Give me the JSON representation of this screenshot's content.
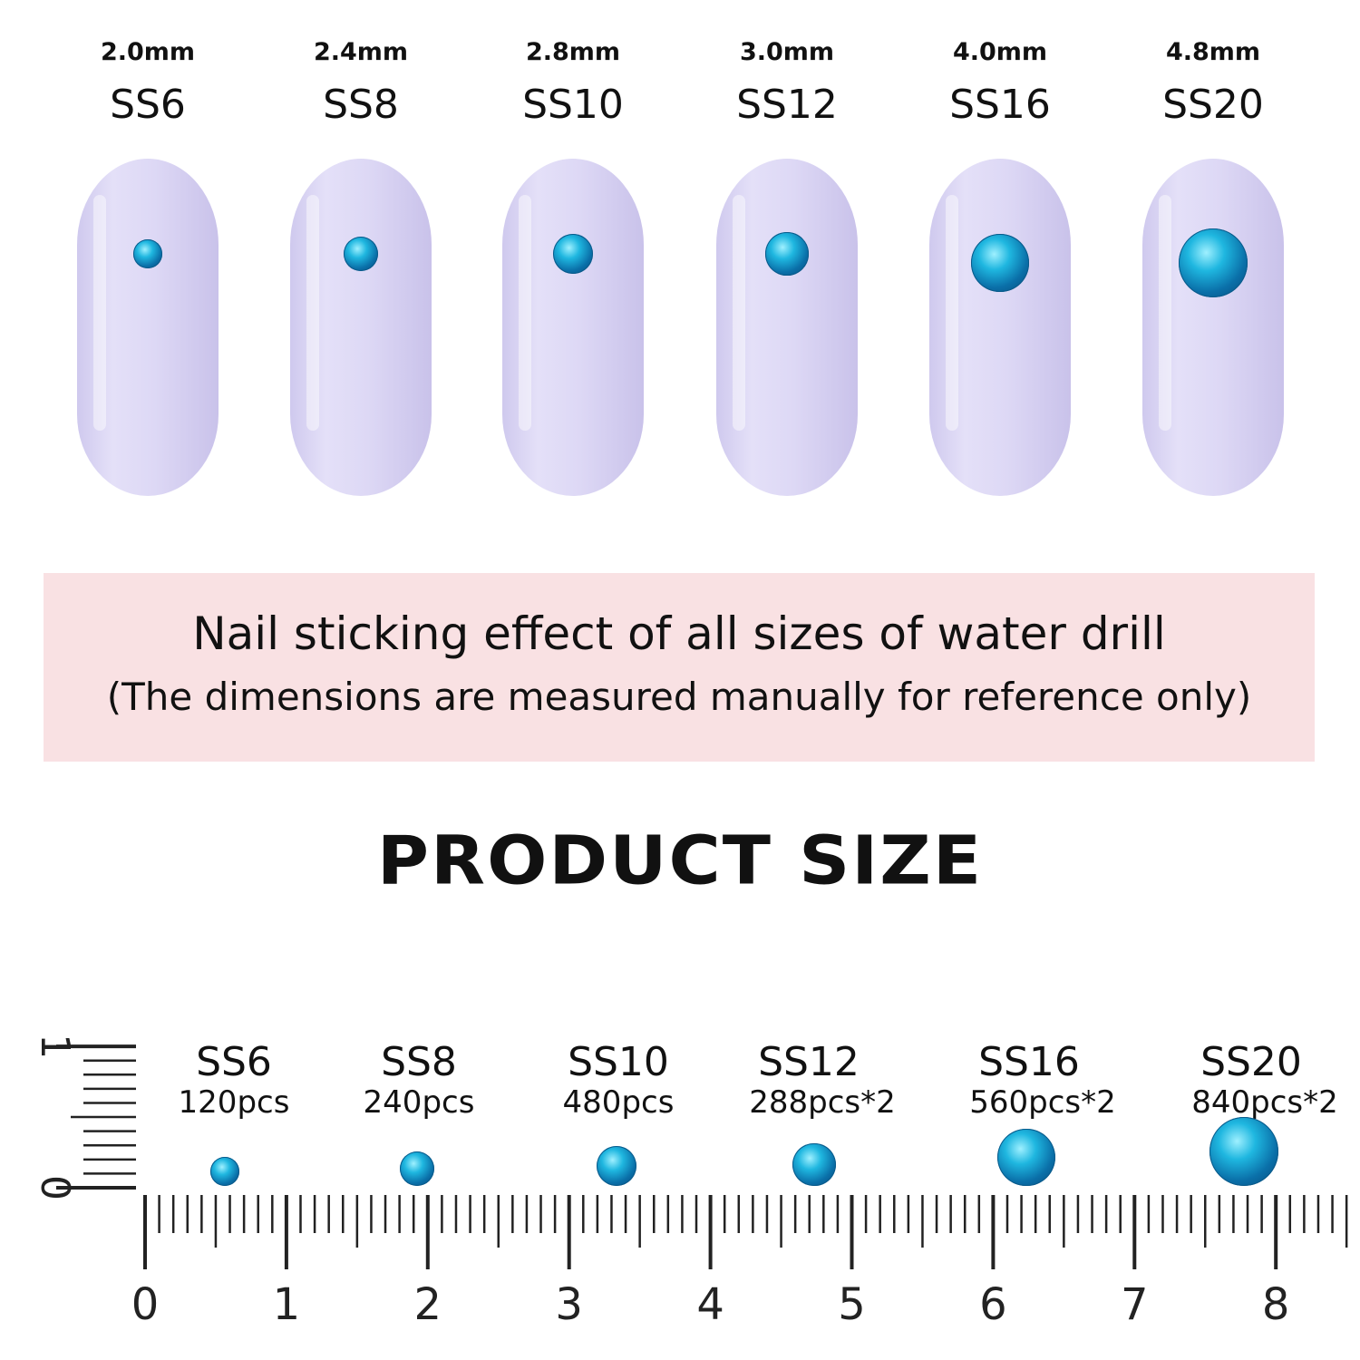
{
  "nails": [
    {
      "mm": "2.0mm",
      "ss": "SS6",
      "gem_mm": 2.0
    },
    {
      "mm": "2.4mm",
      "ss": "SS8",
      "gem_mm": 2.4
    },
    {
      "mm": "2.8mm",
      "ss": "SS10",
      "gem_mm": 2.8
    },
    {
      "mm": "3.0mm",
      "ss": "SS12",
      "gem_mm": 3.0
    },
    {
      "mm": "4.0mm",
      "ss": "SS16",
      "gem_mm": 4.0
    },
    {
      "mm": "4.8mm",
      "ss": "SS20",
      "gem_mm": 4.8
    }
  ],
  "banner": {
    "line1": "Nail sticking effect of all sizes of water drill",
    "line2": "(The dimensions are measured manually for reference only)"
  },
  "title": "PRODUCT  SIZE",
  "products": [
    {
      "ss": "SS6",
      "pcs": "120pcs"
    },
    {
      "ss": "SS8",
      "pcs": "240pcs"
    },
    {
      "ss": "SS10",
      "pcs": "480pcs"
    },
    {
      "ss": "SS12",
      "pcs": "288pcs*2"
    },
    {
      "ss": "SS16",
      "pcs": "560pcs*2"
    },
    {
      "ss": "SS20",
      "pcs": "840pcs*2"
    }
  ],
  "ruler": {
    "labels": [
      "0",
      "1",
      "2",
      "3",
      "4",
      "5",
      "6",
      "7",
      "8"
    ],
    "vertical_labels": [
      "0",
      "1"
    ]
  },
  "colors": {
    "nail": "#ddd8f5",
    "gem": "#1fb7e0",
    "banner": "#f9e1e3"
  }
}
